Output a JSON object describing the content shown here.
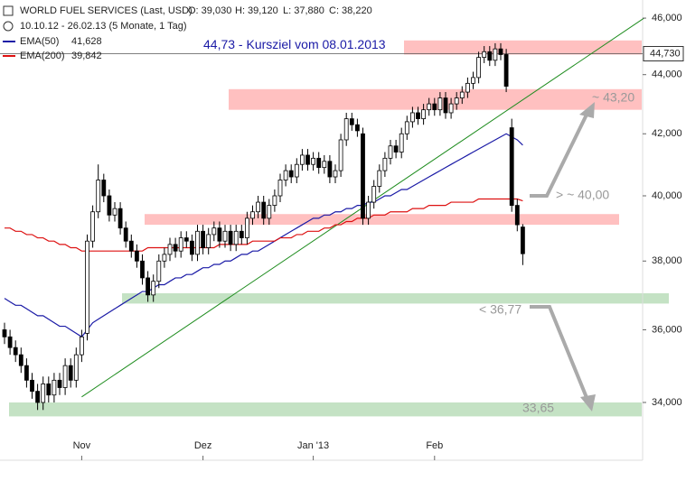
{
  "chart_data": {
    "type": "candlestick",
    "header": {
      "title": "WORLD FUEL SERVICES (Last, USD)",
      "ohlc": [
        "O: 39,030",
        "H: 39,120",
        "L: 37,880",
        "C: 38,220"
      ],
      "range": "10.10.12 - 26.02.13 (5 Monate, 1 Tag)"
    },
    "categories": [
      null,
      null,
      null,
      null,
      null,
      null,
      null,
      null,
      null,
      null,
      null,
      null,
      null,
      null,
      "Nov",
      null,
      null,
      null,
      null,
      null,
      null,
      null,
      null,
      null,
      null,
      null,
      null,
      null,
      null,
      null,
      null,
      null,
      null,
      null,
      null,
      null,
      "Dez",
      null,
      null,
      null,
      null,
      null,
      null,
      null,
      null,
      null,
      null,
      null,
      null,
      null,
      null,
      null,
      null,
      null,
      null,
      null,
      "Jan '13",
      null,
      null,
      null,
      null,
      null,
      null,
      null,
      null,
      null,
      null,
      null,
      null,
      null,
      null,
      null,
      null,
      null,
      null,
      null,
      null,
      null,
      "Feb",
      null,
      null,
      null,
      null,
      null,
      null,
      null,
      null,
      null,
      null,
      null,
      null,
      null,
      null,
      null,
      null
    ],
    "open": [
      36.0,
      35.8,
      35.5,
      35.3,
      35.0,
      34.6,
      34.3,
      34.0,
      34.5,
      34.2,
      34.6,
      34.4,
      35.0,
      34.6,
      35.3,
      35.9,
      38.6,
      39.5,
      40.5,
      40.0,
      39.4,
      39.6,
      39.0,
      38.6,
      38.3,
      38.0,
      37.5,
      37.0,
      37.4,
      38.0,
      38.2,
      38.5,
      38.3,
      38.7,
      38.6,
      38.2,
      38.9,
      38.4,
      38.8,
      39.0,
      38.6,
      38.9,
      38.5,
      38.9,
      38.7,
      39.3,
      39.5,
      39.8,
      39.3,
      39.7,
      40.0,
      40.5,
      40.8,
      40.6,
      41.0,
      41.3,
      41.0,
      41.2,
      40.9,
      41.1,
      40.6,
      40.8,
      41.8,
      42.5,
      42.3,
      42.0,
      39.3,
      39.8,
      40.3,
      40.8,
      41.2,
      41.6,
      41.4,
      42.0,
      42.4,
      42.7,
      42.5,
      42.8,
      43.0,
      42.8,
      43.2,
      42.7,
      43.0,
      43.2,
      43.4,
      43.7,
      43.9,
      44.6,
      44.8,
      44.5,
      44.9,
      44.7,
      42.2,
      39.7,
      39.03
    ],
    "high": [
      36.2,
      36.0,
      35.7,
      35.5,
      35.2,
      34.8,
      34.5,
      34.7,
      34.7,
      34.8,
      34.8,
      35.2,
      35.2,
      35.5,
      36.0,
      38.8,
      39.7,
      41.0,
      40.7,
      40.2,
      39.8,
      39.8,
      39.2,
      38.8,
      38.5,
      38.2,
      37.7,
      37.6,
      38.2,
      38.4,
      38.7,
      38.7,
      38.9,
      38.9,
      38.8,
      39.1,
      39.1,
      39.0,
      39.2,
      39.2,
      39.1,
      39.1,
      39.1,
      39.1,
      39.5,
      39.7,
      40.0,
      40.0,
      39.9,
      40.2,
      40.7,
      41.0,
      41.0,
      41.2,
      41.5,
      41.5,
      41.4,
      41.4,
      41.3,
      41.3,
      41.0,
      42.0,
      42.7,
      42.7,
      42.5,
      42.2,
      40.0,
      40.5,
      41.0,
      41.4,
      41.8,
      41.8,
      42.2,
      42.6,
      42.9,
      42.9,
      43.0,
      43.2,
      43.2,
      43.4,
      43.4,
      43.2,
      43.4,
      43.6,
      43.9,
      44.1,
      44.8,
      45.0,
      45.0,
      45.1,
      45.1,
      44.9,
      42.5,
      39.9,
      39.12
    ],
    "low": [
      35.6,
      35.3,
      35.1,
      34.8,
      34.4,
      34.1,
      33.8,
      33.8,
      34.0,
      34.0,
      34.2,
      34.2,
      34.4,
      34.4,
      35.1,
      35.7,
      38.4,
      39.3,
      39.8,
      39.2,
      39.2,
      38.8,
      38.4,
      38.1,
      37.8,
      37.3,
      36.8,
      36.8,
      37.2,
      37.8,
      38.0,
      38.1,
      38.1,
      38.4,
      38.0,
      38.0,
      38.2,
      38.2,
      38.6,
      38.4,
      38.4,
      38.3,
      38.3,
      38.5,
      38.5,
      39.1,
      39.3,
      39.1,
      39.1,
      39.5,
      39.8,
      40.3,
      40.4,
      40.4,
      40.8,
      40.8,
      40.8,
      40.7,
      40.7,
      40.4,
      40.4,
      40.6,
      41.6,
      42.1,
      41.9,
      39.1,
      39.1,
      39.6,
      40.1,
      40.6,
      41.0,
      41.2,
      41.2,
      41.8,
      42.2,
      42.3,
      42.3,
      42.6,
      42.6,
      42.6,
      42.5,
      42.5,
      42.8,
      43.0,
      43.2,
      43.5,
      43.7,
      44.4,
      44.3,
      44.3,
      44.5,
      43.4,
      39.5,
      38.9,
      37.88
    ],
    "close": [
      35.8,
      35.5,
      35.3,
      35.0,
      34.6,
      34.3,
      34.0,
      34.5,
      34.2,
      34.6,
      34.4,
      35.0,
      34.6,
      35.3,
      35.8,
      38.6,
      39.5,
      40.5,
      40.0,
      39.4,
      39.6,
      39.0,
      38.6,
      38.3,
      38.0,
      37.5,
      37.0,
      37.4,
      38.0,
      38.2,
      38.5,
      38.3,
      38.7,
      38.6,
      38.2,
      38.9,
      38.4,
      38.8,
      39.0,
      38.6,
      38.9,
      38.5,
      38.9,
      38.7,
      39.3,
      39.5,
      39.8,
      39.3,
      39.7,
      40.0,
      40.5,
      40.8,
      40.6,
      41.0,
      41.3,
      41.0,
      41.2,
      40.9,
      41.1,
      40.6,
      40.8,
      41.8,
      42.5,
      42.3,
      42.1,
      39.3,
      39.8,
      40.3,
      40.8,
      41.2,
      41.6,
      41.4,
      42.0,
      42.4,
      42.7,
      42.5,
      42.8,
      43.0,
      42.8,
      43.2,
      42.7,
      43.0,
      43.2,
      43.4,
      43.7,
      43.9,
      44.6,
      44.8,
      44.5,
      44.9,
      44.7,
      43.6,
      39.7,
      39.1,
      38.22
    ],
    "series": [
      {
        "name": "EMA(50)",
        "legend_value": "41,628",
        "color": "#1a1aa6",
        "values": [
          36.9,
          36.8,
          36.7,
          36.7,
          36.6,
          36.5,
          36.4,
          36.4,
          36.3,
          36.2,
          36.1,
          36.1,
          36.0,
          35.9,
          35.8,
          36.0,
          36.2,
          36.3,
          36.4,
          36.5,
          36.6,
          36.7,
          36.8,
          36.9,
          37.0,
          37.1,
          37.1,
          37.2,
          37.3,
          37.3,
          37.4,
          37.5,
          37.5,
          37.6,
          37.6,
          37.7,
          37.8,
          37.8,
          37.9,
          37.9,
          38.0,
          38.0,
          38.1,
          38.2,
          38.2,
          38.3,
          38.3,
          38.4,
          38.5,
          38.6,
          38.7,
          38.8,
          38.9,
          39.0,
          39.1,
          39.2,
          39.3,
          39.3,
          39.4,
          39.4,
          39.5,
          39.5,
          39.6,
          39.6,
          39.7,
          39.7,
          39.8,
          39.8,
          39.9,
          40.0,
          40.0,
          40.1,
          40.2,
          40.2,
          40.3,
          40.4,
          40.5,
          40.6,
          40.7,
          40.8,
          40.9,
          41.0,
          41.1,
          41.2,
          41.3,
          41.4,
          41.5,
          41.6,
          41.7,
          41.8,
          41.9,
          42.0,
          41.9,
          41.8,
          41.628
        ]
      },
      {
        "name": "EMA(200)",
        "legend_value": "39,842",
        "color": "#dd1111",
        "values": [
          39.0,
          39.0,
          38.9,
          38.9,
          38.8,
          38.8,
          38.7,
          38.7,
          38.6,
          38.6,
          38.5,
          38.5,
          38.4,
          38.4,
          38.3,
          38.3,
          38.3,
          38.3,
          38.3,
          38.3,
          38.3,
          38.3,
          38.3,
          38.3,
          38.3,
          38.3,
          38.4,
          38.4,
          38.4,
          38.4,
          38.4,
          38.4,
          38.4,
          38.4,
          38.4,
          38.4,
          38.4,
          38.4,
          38.4,
          38.5,
          38.5,
          38.5,
          38.5,
          38.5,
          38.5,
          38.6,
          38.6,
          38.6,
          38.6,
          38.6,
          38.7,
          38.7,
          38.7,
          38.8,
          38.8,
          38.9,
          38.9,
          38.9,
          39.0,
          39.0,
          39.1,
          39.1,
          39.2,
          39.2,
          39.3,
          39.3,
          39.3,
          39.4,
          39.4,
          39.4,
          39.5,
          39.5,
          39.5,
          39.5,
          39.6,
          39.6,
          39.6,
          39.7,
          39.7,
          39.7,
          39.7,
          39.8,
          39.8,
          39.8,
          39.8,
          39.8,
          39.9,
          39.9,
          39.9,
          39.9,
          39.9,
          39.9,
          39.9,
          39.9,
          39.842
        ]
      }
    ],
    "trendline": {
      "color": "#1e8c1e",
      "x": [
        14,
        116
      ],
      "y": [
        34.15,
        46.0
      ]
    },
    "zones": [
      {
        "from": 44.7,
        "to": 45.2,
        "color": "#ffc0c0"
      },
      {
        "from": 42.8,
        "to": 43.5,
        "color": "#ffc0c0"
      },
      {
        "from": 39.1,
        "to": 39.43,
        "color": "#ffc0c0"
      },
      {
        "from": 36.75,
        "to": 37.05,
        "color": "#c4e2c4"
      },
      {
        "from": 33.63,
        "to": 34.0,
        "color": "#c4e2c4"
      }
    ],
    "annotations": [
      "~ 43,20",
      "> ~ 40,00",
      "< 36,77",
      "33,65"
    ],
    "target": {
      "value": 44.73,
      "label": "44,730",
      "text": "44,73 - Kursziel vom 08.01.2013"
    },
    "log_scale": true,
    "ylim": [
      32.49,
      46.66
    ],
    "yticks": [
      {
        "value": 34,
        "label": "34,000"
      },
      {
        "value": 36,
        "label": "36,000"
      },
      {
        "value": 38,
        "label": "38,000"
      },
      {
        "value": 40,
        "label": "40,000"
      },
      {
        "value": 42,
        "label": "42,000"
      },
      {
        "value": 44,
        "label": "44,000"
      },
      {
        "value": 46,
        "label": "46,000"
      }
    ]
  }
}
